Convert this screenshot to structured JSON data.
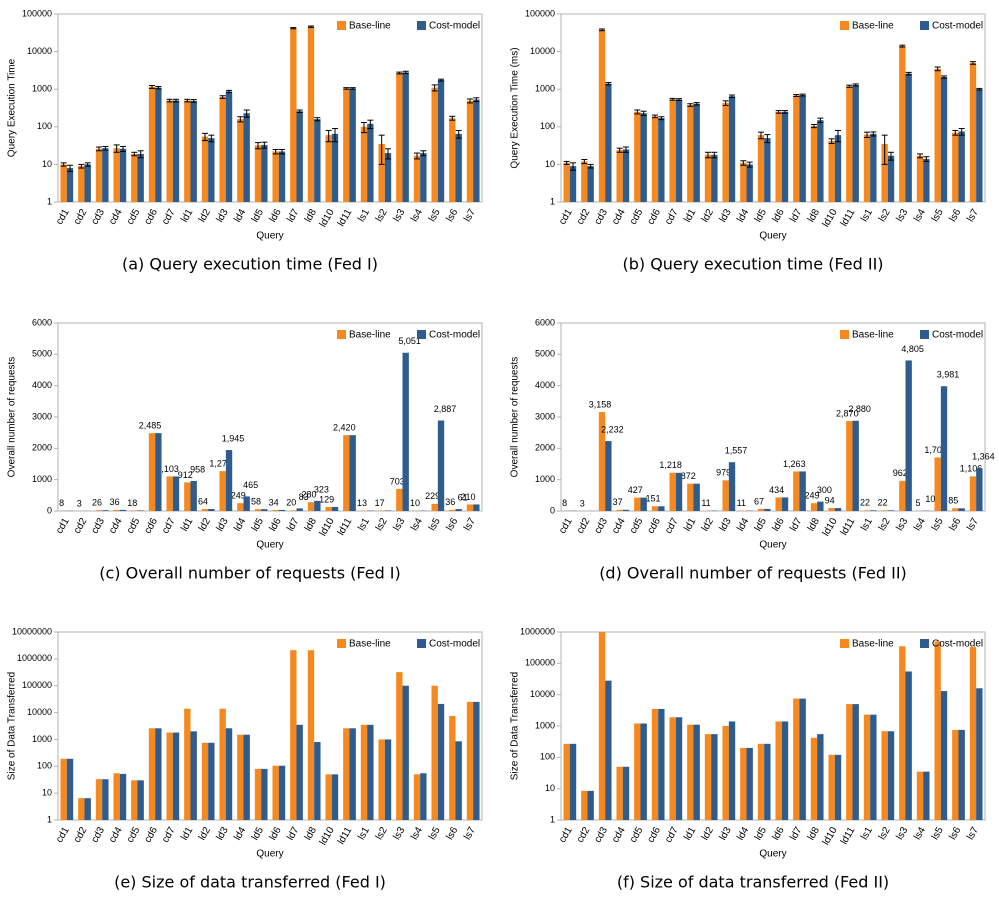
{
  "chart_data": [
    {
      "type": "bar",
      "caption": "(a) Query execution time (Fed I)",
      "y_label": "Query Execution Time",
      "x_label": "Query",
      "log_scale": true,
      "legend": "upper right",
      "categories": [
        "cd1",
        "cd2",
        "cd3",
        "cd4",
        "cd5",
        "cd6",
        "cd7",
        "ld1",
        "ld2",
        "ld3",
        "ld4",
        "ld5",
        "ld6",
        "ld7",
        "ld8",
        "ld10",
        "ld11",
        "ls1",
        "ls2",
        "ls3",
        "ls4",
        "ls5",
        "ls6",
        "ls7"
      ],
      "ylim": [
        1,
        100000
      ],
      "yticks": [
        1,
        10,
        100,
        1000,
        10000,
        100000
      ],
      "series": [
        {
          "name": "Base-line",
          "color": "#f5891f",
          "values": [
            10,
            9,
            26,
            27,
            19,
            1150,
            500,
            500,
            55,
            620,
            160,
            32,
            22,
            42000,
            46000,
            60,
            1050,
            100,
            35,
            2700,
            17,
            1100,
            170,
            490
          ],
          "errors": [
            1,
            1,
            3,
            6,
            2,
            100,
            40,
            40,
            12,
            50,
            25,
            6,
            3,
            1500,
            2000,
            20,
            50,
            30,
            25,
            150,
            3,
            200,
            20,
            60
          ]
        },
        {
          "name": "Cost-model",
          "color": "#2e5c8f",
          "values": [
            8,
            10,
            27,
            26,
            19,
            1100,
            500,
            490,
            50,
            870,
            230,
            33,
            22,
            260,
            160,
            65,
            1050,
            120,
            20,
            2800,
            20,
            1750,
            65,
            530
          ],
          "errors": [
            1.5,
            1,
            3,
            4,
            4,
            80,
            40,
            40,
            10,
            60,
            50,
            6,
            3,
            20,
            15,
            25,
            50,
            30,
            6,
            200,
            3,
            100,
            15,
            60
          ]
        }
      ]
    },
    {
      "type": "bar",
      "caption": "(b) Query execution time (Fed II)",
      "y_label": "Query Execution Time (ms)",
      "x_label": "Query",
      "log_scale": true,
      "legend": "upper right",
      "categories": [
        "cd1",
        "cd2",
        "cd3",
        "cd4",
        "cd5",
        "cd6",
        "cd7",
        "ld1",
        "ld2",
        "ld3",
        "ld4",
        "ld5",
        "ld6",
        "ld7",
        "ld8",
        "ld10",
        "ld11",
        "ls1",
        "ls2",
        "ls3",
        "ls4",
        "ls5",
        "ls6",
        "ls7"
      ],
      "ylim": [
        1,
        100000
      ],
      "yticks": [
        1,
        10,
        100,
        1000,
        10000,
        100000
      ],
      "series": [
        {
          "name": "Base-line",
          "color": "#f5891f",
          "values": [
            11,
            12,
            38000,
            24,
            250,
            190,
            540,
            380,
            18,
            430,
            11,
            60,
            250,
            680,
            105,
            42,
            1200,
            62,
            35,
            14000,
            17,
            3500,
            70,
            5000
          ],
          "errors": [
            1,
            1.5,
            2000,
            3,
            30,
            15,
            30,
            30,
            3,
            60,
            1.5,
            12,
            20,
            40,
            10,
            6,
            80,
            10,
            25,
            800,
            2,
            400,
            10,
            400
          ]
        },
        {
          "name": "Cost-model",
          "color": "#2e5c8f",
          "values": [
            9,
            9,
            1400,
            25,
            230,
            170,
            530,
            410,
            18,
            650,
            10,
            50,
            250,
            700,
            150,
            60,
            1300,
            65,
            17,
            2600,
            14,
            2100,
            75,
            1000
          ],
          "errors": [
            2,
            1,
            100,
            4,
            30,
            15,
            30,
            30,
            3,
            50,
            1.5,
            12,
            20,
            40,
            20,
            20,
            80,
            8,
            4,
            200,
            2,
            150,
            15,
            50
          ]
        }
      ]
    },
    {
      "type": "bar",
      "caption": "(c) Overall number of requests (Fed I)",
      "y_label": "Overall number of requests",
      "x_label": "Query",
      "log_scale": false,
      "legend": "upper right",
      "categories": [
        "cd1",
        "cd2",
        "cd3",
        "cd4",
        "cd5",
        "cd6",
        "cd7",
        "ld1",
        "ld2",
        "ld3",
        "ld4",
        "ld5",
        "ld6",
        "ld7",
        "ld8",
        "ld10",
        "ld11",
        "ls1",
        "ls2",
        "ls3",
        "ls4",
        "ls5",
        "ls6",
        "ls7"
      ],
      "ylim": [
        0,
        6000
      ],
      "yticks": [
        0,
        1000,
        2000,
        3000,
        4000,
        5000,
        6000
      ],
      "series": [
        {
          "name": "Base-line",
          "color": "#f5891f",
          "values": [
            8,
            3,
            26,
            36,
            18,
            2485,
            1103,
            912,
            64,
            1273,
            249,
            58,
            34,
            20,
            280,
            129,
            2420,
            13,
            17,
            703,
            10,
            229,
            36,
            210
          ],
          "value_labels": [
            "8",
            "3",
            "26",
            "36",
            "18",
            "2,485",
            "1,103",
            "912",
            "64",
            "1,273",
            "249",
            "58",
            "34",
            "20",
            "280",
            "129",
            "2,420",
            "13",
            "17",
            "703",
            "10",
            "229",
            "36",
            "210"
          ]
        },
        {
          "name": "Cost-model",
          "color": "#2e5c8f",
          "values": [
            8,
            3,
            26,
            36,
            18,
            2485,
            1103,
            958,
            64,
            1945,
            465,
            58,
            34,
            83,
            323,
            129,
            2420,
            13,
            17,
            5051,
            10,
            2887,
            61,
            210
          ],
          "value_labels": [
            null,
            null,
            null,
            null,
            null,
            null,
            null,
            "958",
            null,
            "1,945",
            "465",
            null,
            null,
            "83",
            "323",
            null,
            null,
            null,
            null,
            "5,051",
            null,
            "2,887",
            "61",
            null
          ]
        }
      ]
    },
    {
      "type": "bar",
      "caption": "(d) Overall number of requests (Fed II)",
      "y_label": "Overall number of requests",
      "x_label": "Query",
      "log_scale": false,
      "legend": "upper right",
      "categories": [
        "cd1",
        "cd2",
        "cd3",
        "cd4",
        "cd5",
        "cd6",
        "cd7",
        "ld1",
        "ld2",
        "ld3",
        "ld4",
        "ld5",
        "ld6",
        "ld7",
        "ld8",
        "ld10",
        "ld11",
        "ls1",
        "ls2",
        "ls3",
        "ls4",
        "ls5",
        "ls6",
        "ls7"
      ],
      "ylim": [
        0,
        6000
      ],
      "yticks": [
        0,
        1000,
        2000,
        3000,
        4000,
        5000,
        6000
      ],
      "series": [
        {
          "name": "Base-line",
          "color": "#f5891f",
          "values": [
            8,
            3,
            3158,
            37,
            427,
            151,
            1218,
            872,
            11,
            979,
            11,
            67,
            434,
            1263,
            249,
            94,
            2870,
            22,
            22,
            962,
            5,
            1709,
            85,
            1106
          ],
          "value_labels": [
            "8",
            "3",
            "3,158",
            "37",
            "427",
            "151",
            "1,218",
            "872",
            "11",
            "979",
            "11",
            "67",
            "434",
            "1,263",
            "249",
            "94",
            "2,870",
            "22",
            "22",
            "962",
            "5",
            "1,709",
            "85",
            "1,106"
          ]
        },
        {
          "name": "Cost-model",
          "color": "#2e5c8f",
          "values": [
            8,
            3,
            2232,
            37,
            427,
            151,
            1218,
            872,
            11,
            1557,
            11,
            67,
            434,
            1263,
            300,
            94,
            2880,
            22,
            22,
            4805,
            10,
            3981,
            85,
            1364
          ],
          "value_labels": [
            null,
            null,
            "2,232",
            null,
            null,
            null,
            null,
            null,
            null,
            "1,557",
            null,
            null,
            null,
            null,
            "300",
            null,
            "2,880",
            null,
            null,
            "4,805",
            "10",
            "3,981",
            null,
            "1,364"
          ]
        }
      ]
    },
    {
      "type": "bar",
      "caption": "(e) Size of data transferred (Fed I)",
      "y_label": "Size of Data Transferred",
      "x_label": "Query",
      "log_scale": true,
      "legend": "upper right",
      "categories": [
        "cd1",
        "cd2",
        "cd3",
        "cd4",
        "cd5",
        "cd6",
        "cd7",
        "ld1",
        "ld2",
        "ld3",
        "ld4",
        "ld5",
        "ld6",
        "ld7",
        "ld8",
        "ld10",
        "ld11",
        "ls1",
        "ls2",
        "ls3",
        "ls4",
        "ls5",
        "ls6",
        "ls7"
      ],
      "ylim": [
        1,
        10000000
      ],
      "yticks": [
        1,
        10,
        100,
        1000,
        10000,
        100000,
        1000000,
        10000000
      ],
      "series": [
        {
          "name": "Base-line",
          "color": "#f5891f",
          "values": [
            190,
            6.5,
            33,
            55,
            30,
            2600,
            1800,
            14000,
            750,
            14000,
            1500,
            80,
            105,
            2100000,
            2100000,
            50,
            2600,
            3500,
            1000,
            320000,
            50,
            100000,
            7500,
            25000
          ]
        },
        {
          "name": "Cost-model",
          "color": "#2e5c8f",
          "values": [
            190,
            6.5,
            33,
            52,
            30,
            2600,
            1800,
            2000,
            750,
            2600,
            1500,
            80,
            105,
            3500,
            800,
            50,
            2600,
            3500,
            1000,
            100000,
            55,
            21000,
            850,
            25000
          ]
        }
      ]
    },
    {
      "type": "bar",
      "caption": "(f) Size of data transferred (Fed II)",
      "y_label": "Size of Data Transferred",
      "x_label": "Query",
      "log_scale": true,
      "legend": "upper right",
      "categories": [
        "cd1",
        "cd2",
        "cd3",
        "cd4",
        "cd5",
        "cd6",
        "cd7",
        "ld1",
        "ld2",
        "ld3",
        "ld4",
        "ld5",
        "ld6",
        "ld7",
        "ld8",
        "ld10",
        "ld11",
        "ls1",
        "ls2",
        "ls3",
        "ls4",
        "ls5",
        "ls6",
        "ls7"
      ],
      "ylim": [
        1,
        1000000
      ],
      "yticks": [
        1,
        10,
        100,
        1000,
        10000,
        100000,
        1000000
      ],
      "series": [
        {
          "name": "Base-line",
          "color": "#f5891f",
          "values": [
            270,
            8.5,
            1000000,
            50,
            1200,
            3500,
            1900,
            1100,
            550,
            1000,
            200,
            270,
            1400,
            7500,
            420,
            120,
            5000,
            2300,
            680,
            350000,
            35,
            500000,
            750,
            330000
          ]
        },
        {
          "name": "Cost-model",
          "color": "#2e5c8f",
          "values": [
            270,
            8.5,
            28000,
            50,
            1200,
            3500,
            1900,
            1100,
            550,
            1400,
            200,
            270,
            1400,
            7500,
            550,
            120,
            5000,
            2300,
            680,
            55000,
            35,
            13000,
            750,
            16000
          ]
        }
      ]
    }
  ]
}
